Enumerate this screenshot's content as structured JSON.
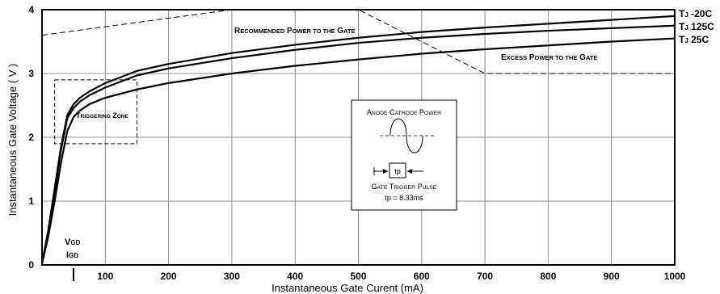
{
  "chart_data": {
    "type": "line",
    "xlabel": "Instantaneous Gate Curent (mA)",
    "ylabel": "Instantaneous Gate Voltage ( V )",
    "xlim": [
      0,
      1000
    ],
    "ylim": [
      0,
      4
    ],
    "xticks": [
      "100",
      "200",
      "300",
      "400",
      "500",
      "600",
      "700",
      "800",
      "900",
      "1000"
    ],
    "xtick_values": [
      100,
      200,
      300,
      400,
      500,
      600,
      700,
      800,
      900,
      1000
    ],
    "yticks": [
      "0",
      "1",
      "2",
      "3",
      "4"
    ],
    "ytick_values": [
      0,
      1,
      2,
      3,
      4
    ],
    "grid": true,
    "series": [
      {
        "name": "TJ -20C",
        "label_main": "T",
        "label_sub": "J",
        "label_rest": " -20C",
        "x": [
          0,
          10,
          20,
          30,
          40,
          50,
          60,
          75,
          100,
          150,
          200,
          300,
          400,
          500,
          600,
          700,
          800,
          900,
          1000
        ],
        "y": [
          0.02,
          0.55,
          1.2,
          1.85,
          2.35,
          2.52,
          2.62,
          2.72,
          2.85,
          3.04,
          3.15,
          3.32,
          3.45,
          3.56,
          3.65,
          3.72,
          3.78,
          3.84,
          3.9
        ]
      },
      {
        "name": "TJ 125C",
        "label_main": "T",
        "label_sub": "J",
        "label_rest": " 125C",
        "x": [
          0,
          10,
          20,
          30,
          40,
          50,
          60,
          75,
          100,
          150,
          200,
          300,
          400,
          500,
          600,
          700,
          800,
          900,
          1000
        ],
        "y": [
          0.02,
          0.5,
          1.15,
          1.8,
          2.3,
          2.46,
          2.56,
          2.66,
          2.78,
          2.97,
          3.08,
          3.24,
          3.37,
          3.48,
          3.56,
          3.62,
          3.67,
          3.71,
          3.75
        ]
      },
      {
        "name": "TJ 25C",
        "label_main": "T",
        "label_sub": "J",
        "label_rest": " 25C",
        "x": [
          0,
          10,
          20,
          30,
          40,
          50,
          60,
          75,
          100,
          150,
          200,
          300,
          400,
          500,
          600,
          700,
          800,
          900,
          1000
        ],
        "y": [
          0.02,
          0.45,
          1.0,
          1.6,
          2.1,
          2.32,
          2.42,
          2.52,
          2.62,
          2.75,
          2.85,
          3.0,
          3.12,
          3.22,
          3.31,
          3.38,
          3.44,
          3.5,
          3.55
        ]
      }
    ],
    "annotations": {
      "recommended": {
        "first": "R",
        "rest": "ECOMMENDED",
        "first2": "P",
        "rest2": "OWER TO THE",
        "first3": "G",
        "rest3": "ATE"
      },
      "excess": {
        "first": "E",
        "rest": "XCESS",
        "first2": "P",
        "rest2": "OWER TO THE",
        "first3": "G",
        "rest3": "ATE"
      },
      "triggering": {
        "first": "T",
        "rest": "RIGGERING",
        "first2": "Z",
        "rest2": "ONE"
      },
      "vgd": {
        "main": "V",
        "sub": "GD"
      },
      "igd": {
        "main": "I",
        "sub": "GD"
      },
      "anode_title": {
        "first": "A",
        "rest": "NODE",
        "first2": "C",
        "rest2": "ATHODE",
        "first3": "P",
        "rest3": "OWER"
      },
      "tp_label": "tp",
      "gate_title": {
        "first": "G",
        "rest": "ATE",
        "first2": "T",
        "rest2": "RIGGER",
        "first3": "P",
        "rest3": "ULSE"
      },
      "tp_value": "tp = 8.33ms"
    },
    "recommended_region": {
      "x": [
        0,
        300,
        500,
        700,
        1000
      ],
      "y": [
        3.6,
        4.0,
        4.0,
        3.0,
        3.0
      ]
    },
    "triggering_zone": {
      "x": [
        20,
        150
      ],
      "y": [
        1.9,
        2.9
      ]
    }
  }
}
